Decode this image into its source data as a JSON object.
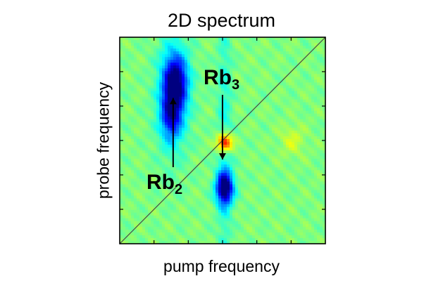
{
  "chart_data": {
    "type": "heatmap",
    "title": "2D spectrum",
    "xlabel": "pump frequency",
    "ylabel": "probe frequency",
    "colormap": "jet",
    "diagonal_line": true,
    "xlim": [
      0,
      1
    ],
    "ylim": [
      0,
      1
    ],
    "x_tick_count": 5,
    "y_tick_count": 5,
    "background_level": 0.5,
    "features": [
      {
        "name": "Rb2-strong",
        "x": 0.27,
        "y": 0.78,
        "sx": 0.04,
        "sy": 0.09,
        "amplitude": -0.48
      },
      {
        "name": "Rb2-tail",
        "x": 0.25,
        "y": 0.62,
        "sx": 0.035,
        "sy": 0.08,
        "amplitude": -0.32
      },
      {
        "name": "Rb2-band",
        "x": 0.26,
        "y": 0.72,
        "sx": 0.06,
        "sy": 0.22,
        "amplitude": -0.12
      },
      {
        "name": "Rb3-lower",
        "x": 0.51,
        "y": 0.27,
        "sx": 0.03,
        "sy": 0.055,
        "amplitude": -0.52
      },
      {
        "name": "Rb3-band",
        "x": 0.51,
        "y": 0.5,
        "sx": 0.025,
        "sy": 0.5,
        "amplitude": -0.1
      },
      {
        "name": "Rb3-cross",
        "x": 0.51,
        "y": 0.49,
        "sx": 0.024,
        "sy": 0.03,
        "amplitude": 0.45
      },
      {
        "name": "weak-right",
        "x": 0.84,
        "y": 0.5,
        "sx": 0.04,
        "sy": 0.05,
        "amplitude": 0.08
      }
    ]
  },
  "annotations": {
    "rb3": {
      "base": "Rb",
      "sub": "3",
      "target": [
        0.51,
        0.68
      ]
    },
    "rb2": {
      "base": "Rb",
      "sub": "2",
      "target": [
        0.27,
        0.56
      ]
    }
  }
}
